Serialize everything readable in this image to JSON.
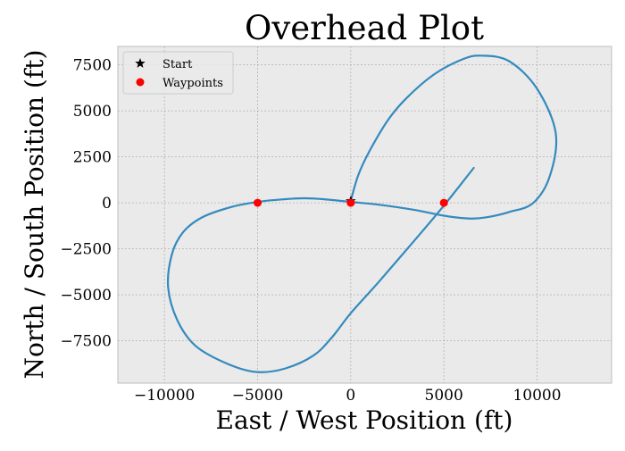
{
  "chart_data": {
    "type": "line",
    "title": "Overhead Plot",
    "xlabel": "East / West Position (ft)",
    "ylabel": "North / South Position (ft)",
    "xlim": [
      -12500,
      14000
    ],
    "ylim": [
      -9800,
      8500
    ],
    "xticks": [
      -10000,
      -5000,
      0,
      5000,
      10000
    ],
    "xtick_labels": [
      "−10000",
      "−5000",
      "0",
      "5000",
      "10000"
    ],
    "yticks": [
      -7500,
      -5000,
      -2500,
      0,
      2500,
      5000,
      7500
    ],
    "ytick_labels": [
      "−7500",
      "−5000",
      "−2500",
      "0",
      "2500",
      "5000",
      "7500"
    ],
    "grid": true,
    "legend_position": "top-left",
    "legend": [
      {
        "label": "Start",
        "marker": "star",
        "color": "#000000"
      },
      {
        "label": "Waypoints",
        "marker": "circle",
        "color": "#ff0000"
      }
    ],
    "series": [
      {
        "color": "#348abd",
        "x": [
          0,
          400,
          1000,
          2000,
          3000,
          4500,
          6000,
          7000,
          8500,
          10000,
          11000,
          10700,
          9800,
          8500,
          7200,
          6300,
          5000,
          3500,
          1500,
          0,
          -1500,
          -2500,
          -3500,
          -5000,
          -6500,
          -8000,
          -9000,
          -9600,
          -9800,
          -9300,
          -8300,
          -6500,
          -5000,
          -3500,
          -2000,
          -1000,
          0,
          1500,
          3500,
          5000,
          6600
        ],
        "y": [
          100,
          1500,
          2800,
          4500,
          5700,
          7000,
          7800,
          8000,
          7700,
          6200,
          3800,
          1500,
          0,
          -500,
          -800,
          -850,
          -700,
          -400,
          -100,
          50,
          200,
          250,
          200,
          50,
          -250,
          -800,
          -1600,
          -2800,
          -4600,
          -6400,
          -7800,
          -8800,
          -9200,
          -9000,
          -8300,
          -7300,
          -6000,
          -4300,
          -1950,
          -150,
          1900
        ]
      }
    ],
    "start_point": {
      "x": 0,
      "y": 100
    },
    "waypoints": {
      "x": [
        -5000,
        0,
        5000
      ],
      "y": [
        0,
        0,
        0
      ]
    }
  }
}
